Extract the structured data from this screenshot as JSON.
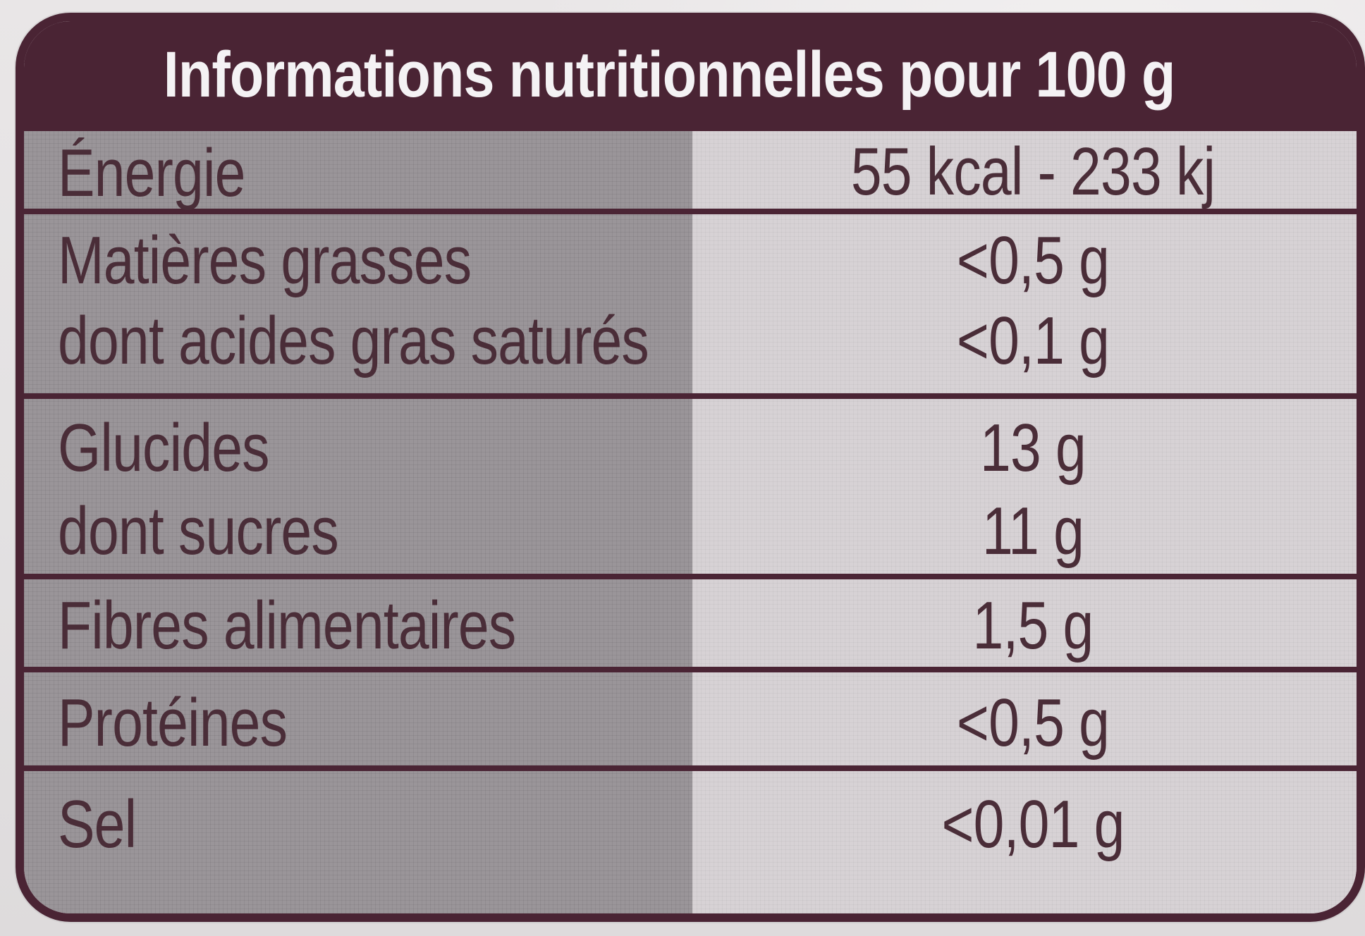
{
  "nutrition_label": {
    "title": "Informations nutritionnelles pour 100 g",
    "rows": [
      {
        "label": "Énergie",
        "value": "55 kcal - 233 kj"
      },
      {
        "label": "Matières grasses",
        "value": "<0,5 g"
      },
      {
        "label": "dont acides gras saturés",
        "value": "<0,1 g"
      },
      {
        "label": "Glucides",
        "value": "13 g"
      },
      {
        "label": "dont sucres",
        "value": "11 g"
      },
      {
        "label": "Fibres alimentaires",
        "value": "1,5 g"
      },
      {
        "label": "Protéines",
        "value": "<0,5 g"
      },
      {
        "label": "Sel",
        "value": "<0,01 g"
      }
    ],
    "colors": {
      "frame": "#4a2434",
      "header_text": "#f4f2f4",
      "left_column": "#9a9599",
      "right_column": "#d7d2d5",
      "text": "#4a2d38"
    }
  }
}
